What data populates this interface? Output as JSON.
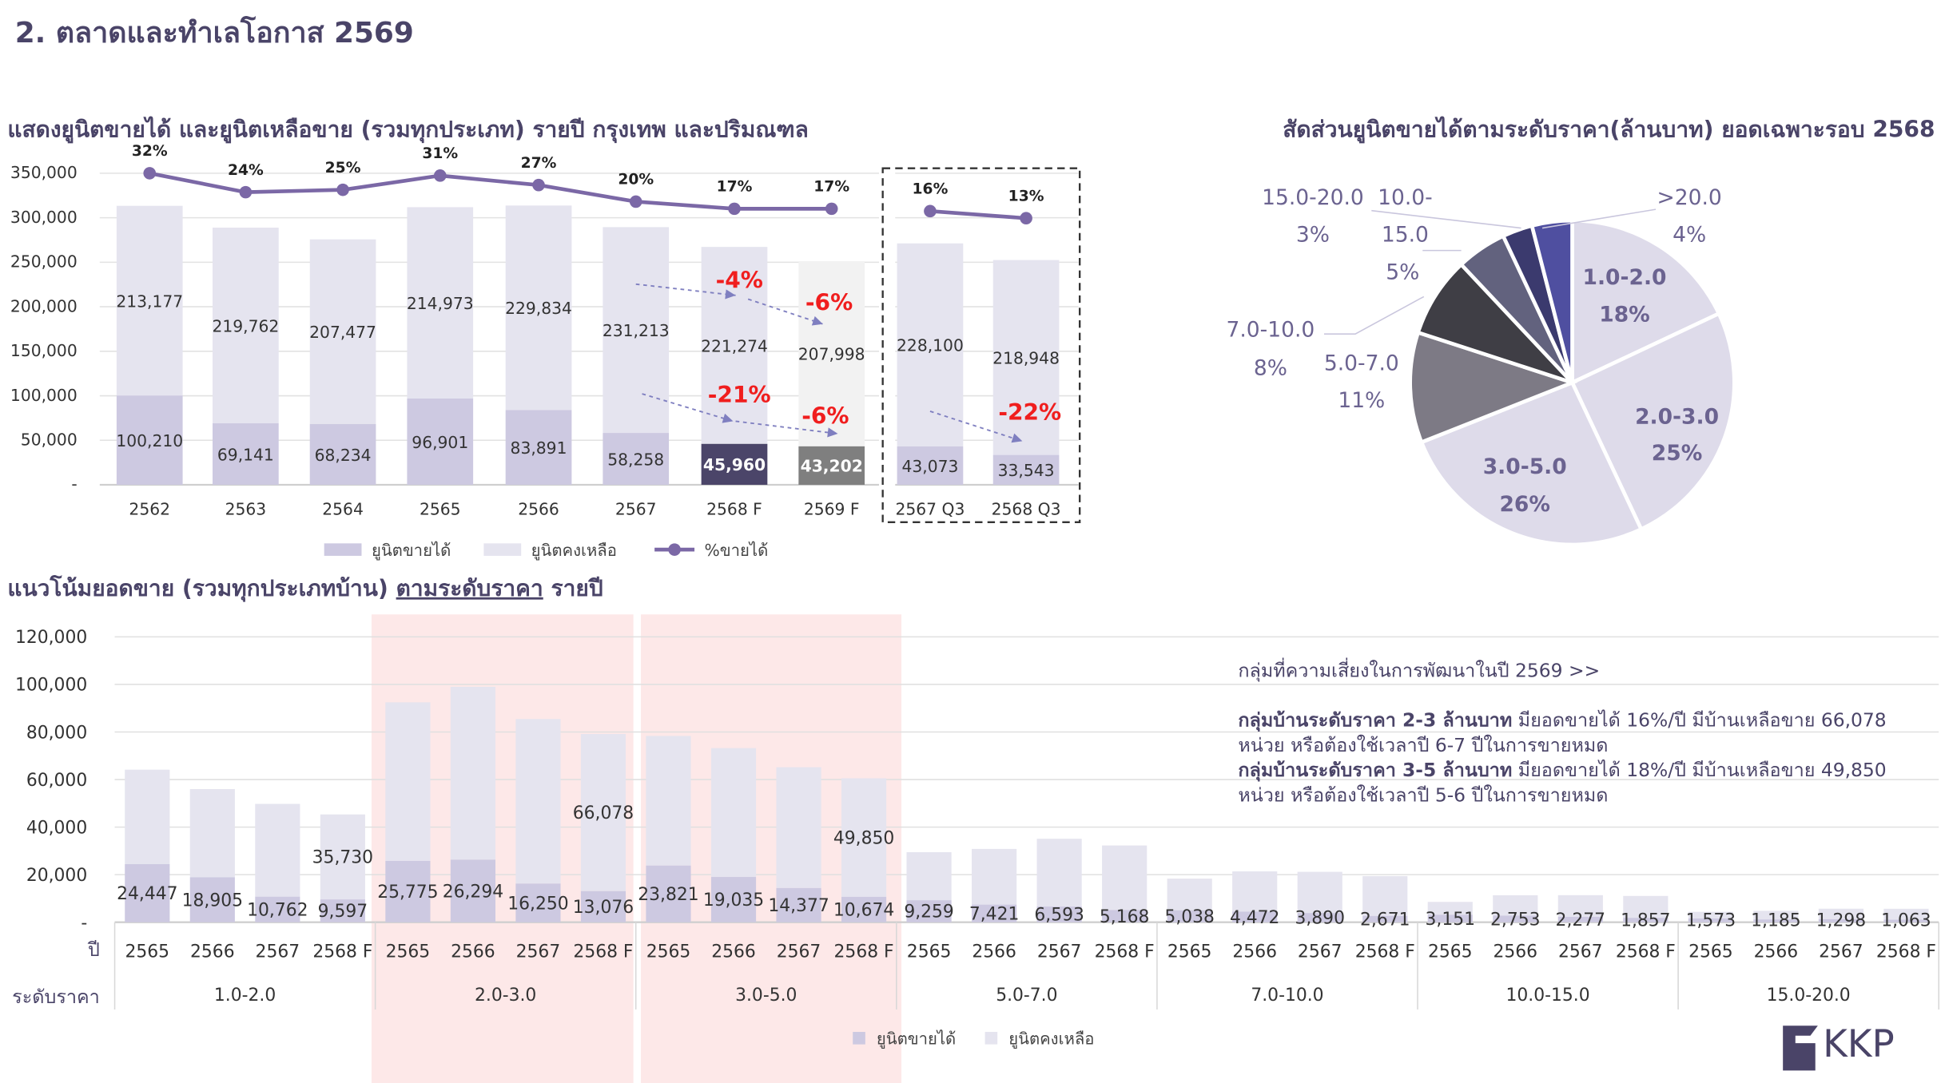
{
  "page_title": "2.    ตลาดและทำเลโอกาส 2569",
  "colors": {
    "title": "#4a4468",
    "sold": "#cdc9e1",
    "remaining": "#e5e4ef",
    "line": "#7b68a6",
    "annotation": "#f01e1e",
    "highlight": "#fde8e8",
    "sold_2568F": "#4b4569",
    "sold_2569F": "#7f7f7f",
    "remaining_2569F": "#f2f2f2"
  },
  "chart_data": [
    {
      "id": "annual",
      "type": "bar",
      "stacked": true,
      "title": "แสดงยูนิตขายได้ และยูนิตเหลือขาย (รวมทุกประเภท) รายปี กรุงเทพ และปริมณฑล",
      "categories": [
        "2562",
        "2563",
        "2564",
        "2565",
        "2566",
        "2567",
        "2568 F",
        "2569 F",
        "2567 Q3",
        "2568 Q3"
      ],
      "y_ticks": [
        "-",
        "50,000",
        "100,000",
        "150,000",
        "200,000",
        "250,000",
        "300,000",
        "350,000"
      ],
      "ylim": [
        0,
        350000
      ],
      "grid": true,
      "legend_position": "bottom",
      "series": [
        {
          "name": "ยูนิตขายได้",
          "type": "bar",
          "values": [
            100210,
            69141,
            68234,
            96901,
            83891,
            58258,
            45960,
            43202,
            43073,
            33543
          ],
          "labels": [
            "100,210",
            "69,141",
            "68,234",
            "96,901",
            "83,891",
            "58,258",
            "45,960",
            "43,202",
            "43,073",
            "33,543"
          ]
        },
        {
          "name": "ยูนิตคงเหลือ",
          "type": "bar",
          "values": [
            213177,
            219762,
            207477,
            214973,
            229834,
            231213,
            221274,
            207998,
            228100,
            218948
          ],
          "labels": [
            "213,177",
            "219,762",
            "207,477",
            "214,973",
            "229,834",
            "231,213",
            "221,274",
            "207,998",
            "228,100",
            "218,948"
          ]
        },
        {
          "name": "%ขายได้",
          "type": "line",
          "values": [
            32,
            24,
            25,
            31,
            27,
            20,
            17,
            17,
            16,
            13
          ],
          "labels": [
            "32%",
            "24%",
            "25%",
            "31%",
            "27%",
            "20%",
            "17%",
            "17%",
            "16%",
            "13%"
          ]
        }
      ],
      "annotations": [
        "-4%",
        "-6%",
        "-21%",
        "-6%",
        "-22%"
      ],
      "boxed_categories": [
        "2567 Q3",
        "2568 Q3"
      ]
    },
    {
      "id": "share",
      "type": "pie",
      "title": "สัดส่วนยูนิตขายได้ตามระดับราคา(ล้านบาท) ยอดเฉพาะรอบ 2568",
      "slices": [
        {
          "label": "1.0-2.0",
          "value": 18,
          "text": "18%",
          "color": "#dedbea"
        },
        {
          "label": "2.0-3.0",
          "value": 25,
          "text": "25%",
          "color": "#dedbea"
        },
        {
          "label": "3.0-5.0",
          "value": 26,
          "text": "26%",
          "color": "#dedbea"
        },
        {
          "label": "5.0-7.0",
          "value": 11,
          "text": "11%",
          "color": "#7d7a85"
        },
        {
          "label": "7.0-10.0",
          "value": 8,
          "text": "8%",
          "color": "#3f3e45"
        },
        {
          "label": "10.0-15.0",
          "value": 5,
          "text": "5%",
          "color": "#62627e"
        },
        {
          "label": "15.0-20.0",
          "value": 3,
          "text": "3%",
          "color": "#3b3a6e"
        },
        {
          "label": ">20.0",
          "value": 4,
          "text": "4%",
          "color": "#4f4fa0"
        }
      ]
    },
    {
      "id": "by_price",
      "type": "bar",
      "stacked": true,
      "title": "แนวโน้มยอดขาย (รวมทุกประเภทบ้าน) ",
      "title_underlined": "ตามระดับราคา",
      "title_suffix": " รายปี",
      "y_ticks": [
        "-",
        "20,000",
        "40,000",
        "60,000",
        "80,000",
        "100,000",
        "120,000"
      ],
      "ylim": [
        0,
        120000
      ],
      "grid": true,
      "axis_row_labels": {
        "year": "ปี",
        "price": "ระดับราคา"
      },
      "groups": [
        "1.0-2.0",
        "2.0-3.0",
        "3.0-5.0",
        "5.0-7.0",
        "7.0-10.0",
        "10.0-15.0",
        "15.0-20.0"
      ],
      "highlighted_groups": [
        "2.0-3.0",
        "3.0-5.0"
      ],
      "years": [
        "2565",
        "2566",
        "2567",
        "2568 F"
      ],
      "legend_position": "bottom",
      "series": [
        {
          "name": "ยูนิตขายได้",
          "values": [
            24447,
            18905,
            10762,
            9597,
            25775,
            26294,
            16250,
            13076,
            23821,
            19035,
            14377,
            10674,
            9259,
            7421,
            6593,
            5168,
            5038,
            4472,
            3890,
            2671,
            3151,
            2753,
            2277,
            1857,
            1573,
            1185,
            1298,
            1063
          ],
          "labels": [
            "24,447",
            "18,905",
            "10,762",
            "9,597",
            "25,775",
            "26,294",
            "16,250",
            "13,076",
            "23,821",
            "19,035",
            "14,377",
            "10,674",
            "9,259",
            "7,421",
            "6,593",
            "5,168",
            "5,038",
            "4,472",
            "3,890",
            "2,671",
            "3,151",
            "2,753",
            "2,277",
            "1,857",
            "1,573",
            "1,185",
            "1,298",
            "1,063"
          ]
        },
        {
          "name": "ยูนิตคงเหลือ",
          "values": [
            39700,
            37100,
            39000,
            35730,
            66700,
            72700,
            69200,
            66078,
            54500,
            54200,
            50800,
            49850,
            20200,
            23400,
            28500,
            27100,
            13300,
            16900,
            17300,
            16700,
            5400,
            8600,
            9100,
            9200,
            2800,
            3600,
            4400,
            4600
          ],
          "labels_shown": {
            "3": "35,730",
            "7": "66,078",
            "11": "49,850"
          }
        }
      ]
    }
  ],
  "notes": {
    "heading": "กลุ่มที่ความเสี่ยงในการพัฒนาในปี 2569 >>",
    "line1_bold": "กลุ่มบ้านระดับราคา 2-3 ล้านบาท",
    "line1_rest": " มียอดขายได้ 16%/ปี มีบ้านเหลือขาย 66,078",
    "line2": "หน่วย หรือต้องใช้เวลาปี 6-7 ปีในการขายหมด",
    "line3_bold": "กลุ่มบ้านระดับราคา 3-5 ล้านบาท",
    "line3_rest": " มียอดขายได้ 18%/ปี มีบ้านเหลือขาย 49,850",
    "line4": "หน่วย หรือต้องใช้เวลาปี 5-6 ปีในการขายหมด"
  },
  "logo": {
    "text": "KKP",
    "icon": "kkp-logo-icon"
  }
}
